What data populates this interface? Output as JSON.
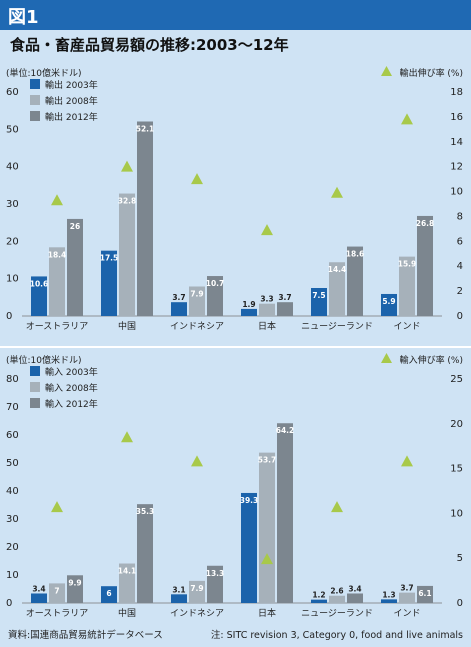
{
  "figure_label": "図1",
  "title": "食品・畜産品貿易額の推移:2003〜12年",
  "source": "資料:国連商品貿易統計データベース",
  "note": "注: SITC revision 3, Category 0, food and live animals",
  "colors": {
    "series_2003": "#1b63ab",
    "series_2008": "#a6b1ba",
    "series_2012": "#7c868f",
    "marker": "#a8c94a",
    "header": "#1f69b3",
    "background": "#cfe3f4"
  },
  "chart_data": [
    {
      "type": "bar",
      "ylabel_left": "(単位:10億米ドル)",
      "ylabel_right": "輸出伸び率 (%)",
      "left_ylim": [
        0,
        60
      ],
      "left_ticks": [
        0,
        10,
        20,
        30,
        40,
        50,
        60
      ],
      "right_ylim": [
        0,
        18
      ],
      "right_ticks": [
        0,
        2,
        4,
        6,
        8,
        10,
        12,
        14,
        16,
        18
      ],
      "legend_placement": "top-left",
      "categories": [
        "オーストラリア",
        "中国",
        "インドネシア",
        "日本",
        "ニュージーランド",
        "インド"
      ],
      "series": [
        {
          "name": "輸出 2003年",
          "values": [
            10.6,
            17.5,
            3.7,
            1.9,
            7.5,
            5.9
          ]
        },
        {
          "name": "輸出 2008年",
          "values": [
            18.4,
            32.8,
            7.9,
            3.3,
            14.4,
            15.9
          ]
        },
        {
          "name": "輸出 2012年",
          "values": [
            26,
            52.1,
            10.7,
            3.7,
            18.6,
            26.8
          ]
        }
      ],
      "growth": {
        "name": "輸出伸び率 (%)",
        "values": [
          9.3,
          12.0,
          11.0,
          6.9,
          9.9,
          15.8
        ]
      }
    },
    {
      "type": "bar",
      "ylabel_left": "(単位:10億米ドル)",
      "ylabel_right": "輸入伸び率 (%)",
      "left_ylim": [
        0,
        80
      ],
      "left_ticks": [
        0,
        10,
        20,
        30,
        40,
        50,
        60,
        70,
        80
      ],
      "right_ylim": [
        0,
        25
      ],
      "right_ticks": [
        0,
        5,
        10,
        15,
        20,
        25
      ],
      "legend_placement": "top-left",
      "categories": [
        "オーストラリア",
        "中国",
        "インドネシア",
        "日本",
        "ニュージーランド",
        "インド"
      ],
      "series": [
        {
          "name": "輸入 2003年",
          "values": [
            3.4,
            6,
            3.1,
            39.3,
            1.2,
            1.3
          ]
        },
        {
          "name": "輸入 2008年",
          "values": [
            7,
            14.1,
            7.9,
            53.7,
            2.6,
            3.7
          ]
        },
        {
          "name": "輸入 2012年",
          "values": [
            9.9,
            35.3,
            13.3,
            64.2,
            3.4,
            6.1
          ]
        }
      ],
      "growth": {
        "name": "輸入伸び率 (%)",
        "values": [
          10.7,
          18.5,
          15.8,
          4.9,
          10.7,
          15.8
        ]
      }
    }
  ]
}
